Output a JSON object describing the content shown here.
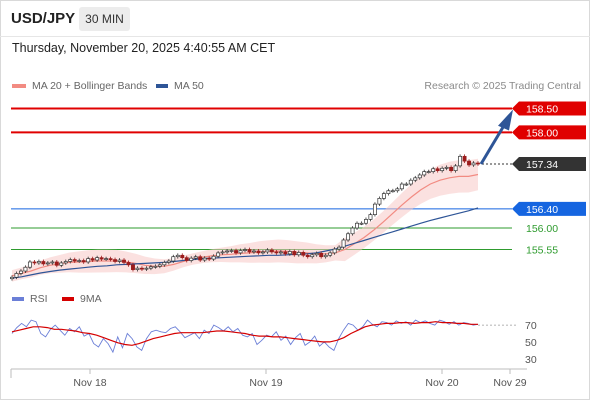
{
  "header": {
    "symbol": "USD/JPY",
    "interval": "30 MIN",
    "datetime": "Thursday, November 20, 2025 4:40:55 AM CET"
  },
  "legend": {
    "ma20": {
      "label": "MA 20 + Bollinger Bands",
      "color": "#f28b82"
    },
    "ma50": {
      "label": "MA 50",
      "color": "#2e5597"
    },
    "credit": "Research © 2025 Trading Central"
  },
  "rsi_legend": {
    "rsi": {
      "label": "RSI",
      "color": "#6b7fd7"
    },
    "ma9": {
      "label": "9MA",
      "color": "#d50000"
    }
  },
  "chart_data": [
    {
      "type": "line",
      "title": "",
      "xlabel": "",
      "ylabel": "",
      "x_tick_labels": [
        "Nov 18",
        "Nov 19",
        "Nov 20",
        "Nov 29"
      ],
      "ylim": [
        154.85,
        158.72
      ],
      "price_levels": [
        {
          "value": 158.5,
          "label": "158.50",
          "color": "#e00000",
          "style": "resistance"
        },
        {
          "value": 158.0,
          "label": "158.00",
          "color": "#e00000",
          "style": "resistance"
        },
        {
          "value": 157.34,
          "label": "157.34",
          "color": "#333333",
          "style": "last-price"
        },
        {
          "value": 156.4,
          "label": "156.40",
          "color": "#1565e0",
          "style": "pivot"
        },
        {
          "value": 156.0,
          "label": "156.00",
          "color": "#2e9b2e",
          "style": "support"
        },
        {
          "value": 155.55,
          "label": "155.55",
          "color": "#2e9b2e",
          "style": "support"
        }
      ],
      "series": [
        {
          "name": "USD/JPY",
          "values": [
            154.97,
            155.05,
            155.1,
            155.18,
            155.29,
            155.27,
            155.3,
            155.25,
            155.27,
            155.29,
            155.22,
            155.27,
            155.3,
            155.34,
            155.31,
            155.32,
            155.29,
            155.36,
            155.33,
            155.38,
            155.35,
            155.36,
            155.34,
            155.3,
            155.33,
            155.28,
            155.23,
            155.13,
            155.16,
            155.14,
            155.16,
            155.19,
            155.2,
            155.23,
            155.28,
            155.31,
            155.4,
            155.43,
            155.38,
            155.32,
            155.37,
            155.4,
            155.33,
            155.37,
            155.35,
            155.41,
            155.48,
            155.5,
            155.52,
            155.53,
            155.48,
            155.53,
            155.55,
            155.5,
            155.52,
            155.48,
            155.5,
            155.54,
            155.5,
            155.48,
            155.5,
            155.46,
            155.51,
            155.44,
            155.49,
            155.43,
            155.4,
            155.44,
            155.47,
            155.4,
            155.43,
            155.48,
            155.56,
            155.6,
            155.75,
            155.88,
            156.0,
            156.1,
            156.1,
            156.18,
            156.28,
            156.5,
            156.62,
            156.72,
            156.78,
            156.78,
            156.82,
            156.92,
            156.92,
            157.0,
            157.05,
            157.11,
            157.18,
            157.18,
            157.24,
            157.2,
            157.25,
            157.27,
            157.2,
            157.3,
            157.5,
            157.4,
            157.32,
            157.36,
            157.34
          ]
        },
        {
          "name": "MA 20",
          "values": [
            155.0,
            155.05,
            155.1,
            155.17,
            155.22,
            155.25,
            155.28,
            155.29,
            155.3,
            155.31,
            155.31,
            155.31,
            155.29,
            155.26,
            155.22,
            155.2,
            155.2,
            155.24,
            155.3,
            155.35,
            155.39,
            155.42,
            155.44,
            155.45,
            155.47,
            155.48,
            155.5,
            155.51,
            155.52,
            155.51,
            155.49,
            155.48,
            155.46,
            155.46,
            155.48,
            155.55,
            155.67,
            155.8,
            155.95,
            156.12,
            156.3,
            156.48,
            156.65,
            156.8,
            156.92,
            157.0,
            157.05,
            157.08,
            157.08,
            157.12
          ]
        },
        {
          "name": "MA 50",
          "values": [
            154.95,
            154.98,
            155.02,
            155.06,
            155.09,
            155.12,
            155.14,
            155.16,
            155.18,
            155.2,
            155.21,
            155.23,
            155.24,
            155.25,
            155.26,
            155.27,
            155.28,
            155.3,
            155.32,
            155.34,
            155.36,
            155.37,
            155.38,
            155.39,
            155.4,
            155.41,
            155.42,
            155.43,
            155.43,
            155.44,
            155.45,
            155.46,
            155.48,
            155.52,
            155.56,
            155.62,
            155.68,
            155.74,
            155.8,
            155.86,
            155.92,
            155.98,
            156.04,
            156.1,
            156.16,
            156.21,
            156.26,
            156.31,
            156.36,
            156.42
          ]
        }
      ]
    },
    {
      "type": "line",
      "title": "",
      "ylim": [
        25,
        82
      ],
      "y_ticks": [
        70,
        50,
        30
      ],
      "series": [
        {
          "name": "RSI",
          "values": [
            60,
            67,
            72,
            68,
            76,
            74,
            60,
            56,
            65,
            70,
            64,
            58,
            66,
            62,
            68,
            57,
            60,
            48,
            44,
            54,
            48,
            38,
            56,
            43,
            60,
            54,
            44,
            40,
            54,
            62,
            64,
            62,
            61,
            66,
            68,
            62,
            55,
            58,
            61,
            54,
            64,
            60,
            70,
            67,
            63,
            68,
            62,
            66,
            58,
            56,
            60,
            47,
            52,
            58,
            56,
            62,
            52,
            57,
            47,
            55,
            60,
            46,
            50,
            57,
            45,
            50,
            44,
            40,
            54,
            64,
            72,
            70,
            64,
            68,
            76,
            71,
            68,
            74,
            73,
            70,
            75,
            72,
            74,
            70,
            76,
            73,
            75,
            72,
            70,
            76,
            74,
            71,
            74,
            70,
            73,
            72,
            70,
            71
          ]
        },
        {
          "name": "9MA",
          "values": [
            62,
            64,
            66,
            68,
            68,
            67,
            65,
            65,
            64,
            63,
            61,
            60,
            58,
            55,
            52,
            49,
            47,
            46,
            48,
            51,
            54,
            56,
            58,
            60,
            61,
            61,
            61,
            61,
            62,
            63,
            63,
            62,
            61,
            60,
            58,
            57,
            57,
            56,
            56,
            55,
            54,
            53,
            52,
            51,
            50,
            50,
            52,
            55,
            60,
            64,
            68,
            70,
            71,
            72,
            72,
            73,
            73,
            72,
            73,
            73,
            74,
            73,
            73,
            72,
            72,
            71,
            71
          ]
        }
      ]
    }
  ]
}
